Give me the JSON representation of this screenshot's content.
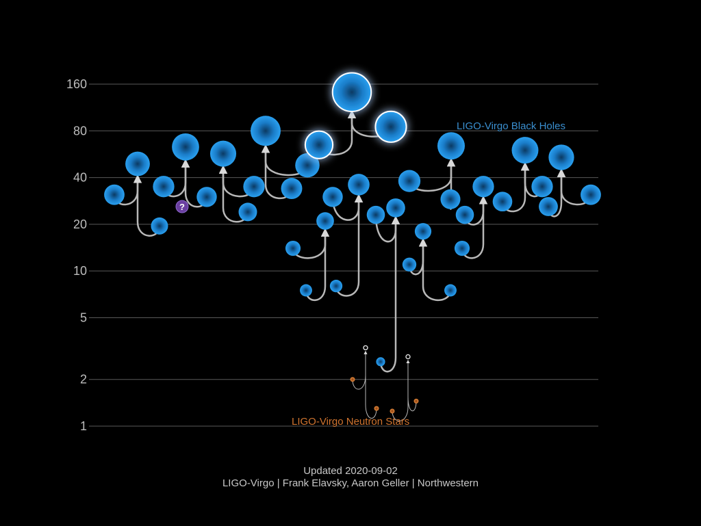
{
  "chart_data": {
    "type": "scatter",
    "y_scale": "log",
    "ylim": [
      1,
      170
    ],
    "y_ticks": [
      1,
      2,
      5,
      10,
      20,
      40,
      80,
      160
    ],
    "grid": true,
    "annotations": {
      "black_holes": "LIGO-Virgo Black Holes",
      "neutron_stars": "LIGO-Virgo Neutron Stars",
      "unknown_marker": "?"
    },
    "colors": {
      "black_hole": "#1e90e0",
      "neutron_star": "#d9782e",
      "unknown": "#6a3fa0",
      "merger_arrow": "#b8b8b8"
    },
    "mergers": [
      {
        "kind": "bh",
        "inputs": [
          31,
          19.5
        ],
        "final": 49
      },
      {
        "kind": "bh",
        "inputs": [
          35,
          30
        ],
        "final": 63
      },
      {
        "kind": "bh",
        "inputs": [
          35,
          24
        ],
        "final": 57
      },
      {
        "kind": "bh",
        "inputs": [
          48,
          34
        ],
        "final": 80
      },
      {
        "kind": "bh",
        "inputs": [
          65,
          85
        ],
        "final": 142
      },
      {
        "kind": "bh",
        "inputs": [
          14,
          7.5
        ],
        "final": 21
      },
      {
        "kind": "bh",
        "inputs": [
          30,
          8
        ],
        "final": 36
      },
      {
        "kind": "bh",
        "inputs": [
          23,
          2.6
        ],
        "final": 25.5
      },
      {
        "kind": "bh",
        "inputs": [
          38,
          29
        ],
        "final": 64
      },
      {
        "kind": "bh",
        "inputs": [
          11,
          7.5
        ],
        "final": 18
      },
      {
        "kind": "bh",
        "inputs": [
          23,
          14
        ],
        "final": 35
      },
      {
        "kind": "bh",
        "inputs": [
          28,
          35
        ],
        "final": 60
      },
      {
        "kind": "bh",
        "inputs": [
          26,
          31
        ],
        "final": 54
      },
      {
        "kind": "ns",
        "inputs": [
          2.0,
          1.3
        ],
        "final": 3.2
      },
      {
        "kind": "ns",
        "inputs": [
          1.25,
          1.45
        ],
        "final": 2.8
      }
    ],
    "unknown_points": [
      26
    ]
  },
  "footer": {
    "updated": "Updated 2020-09-02",
    "credits": "LIGO-Virgo | Frank Elavsky, Aaron Geller | Northwestern"
  }
}
